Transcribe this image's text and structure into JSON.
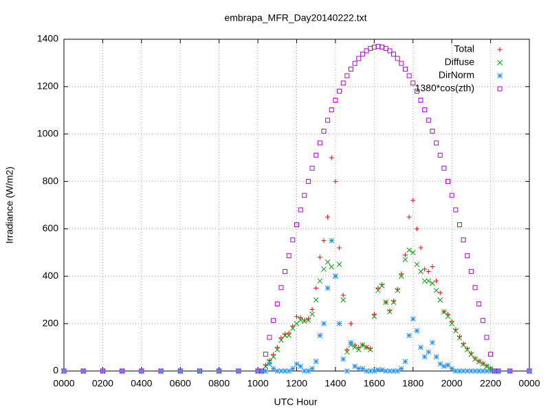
{
  "chart_data": {
    "type": "scatter",
    "title": "embrapa_MFR_Day20140222.txt",
    "xlabel": "UTC Hour",
    "ylabel": "Irradiance (W/m2)",
    "xlim": [
      0,
      24
    ],
    "xticks": [
      {
        "value": 0,
        "label": "0000"
      },
      {
        "value": 2,
        "label": "0200"
      },
      {
        "value": 4,
        "label": "0400"
      },
      {
        "value": 6,
        "label": "0600"
      },
      {
        "value": 8,
        "label": "0800"
      },
      {
        "value": 10,
        "label": "1000"
      },
      {
        "value": 12,
        "label": "1200"
      },
      {
        "value": 14,
        "label": "1400"
      },
      {
        "value": 16,
        "label": "1600"
      },
      {
        "value": 18,
        "label": "1800"
      },
      {
        "value": 20,
        "label": "2000"
      },
      {
        "value": 22,
        "label": "2200"
      },
      {
        "value": 24,
        "label": "0000"
      }
    ],
    "ylim": [
      0,
      1400
    ],
    "yticks": [
      0,
      200,
      400,
      600,
      800,
      1000,
      1200,
      1400
    ],
    "grid": true,
    "legend": "top-right",
    "x": [
      0,
      1,
      2,
      3,
      4,
      5,
      6,
      7,
      8,
      9,
      10,
      10.2,
      10.4,
      10.6,
      10.8,
      11,
      11.2,
      11.4,
      11.6,
      11.8,
      12,
      12.2,
      12.4,
      12.6,
      12.8,
      13,
      13.2,
      13.4,
      13.6,
      13.8,
      14,
      14.2,
      14.4,
      14.6,
      14.8,
      15,
      15.2,
      15.4,
      15.6,
      15.8,
      16,
      16.2,
      16.4,
      16.6,
      16.8,
      17,
      17.2,
      17.4,
      17.6,
      17.8,
      18,
      18.2,
      18.4,
      18.6,
      18.8,
      19,
      19.2,
      19.4,
      19.6,
      19.8,
      20,
      20.2,
      20.4,
      20.6,
      20.8,
      21,
      21.2,
      21.4,
      21.6,
      21.8,
      22,
      22.2,
      22.4,
      23,
      24
    ],
    "series": [
      {
        "name": "Total",
        "color": "#ff0000",
        "marker": "plus",
        "values": [
          0,
          0,
          0,
          0,
          0,
          0,
          0,
          0,
          0,
          0,
          0,
          0,
          25,
          45,
          70,
          100,
          140,
          155,
          160,
          190,
          230,
          225,
          215,
          220,
          260,
          350,
          480,
          550,
          650,
          900,
          800,
          520,
          320,
          90,
          200,
          110,
          100,
          110,
          100,
          95,
          240,
          350,
          365,
          290,
          255,
          295,
          345,
          410,
          490,
          650,
          720,
          600,
          520,
          430,
          420,
          440,
          380,
          330,
          250,
          240,
          210,
          175,
          145,
          115,
          95,
          75,
          55,
          42,
          32,
          22,
          12,
          0,
          0,
          0,
          0
        ]
      },
      {
        "name": "Diffuse",
        "color": "#00a000",
        "marker": "cross",
        "values": [
          0,
          0,
          0,
          0,
          0,
          0,
          0,
          0,
          0,
          0,
          0,
          0,
          20,
          40,
          60,
          90,
          130,
          150,
          150,
          180,
          200,
          215,
          210,
          215,
          240,
          300,
          380,
          430,
          460,
          440,
          400,
          450,
          300,
          80,
          110,
          100,
          90,
          110,
          100,
          90,
          230,
          340,
          360,
          290,
          250,
          290,
          340,
          400,
          470,
          510,
          500,
          450,
          420,
          380,
          380,
          370,
          340,
          300,
          250,
          230,
          200,
          170,
          140,
          110,
          90,
          70,
          50,
          40,
          30,
          20,
          10,
          0,
          0,
          0,
          0
        ]
      },
      {
        "name": "DirNorm",
        "color": "#1e90ff",
        "marker": "star",
        "values": [
          0,
          0,
          0,
          0,
          0,
          0,
          0,
          0,
          0,
          0,
          0,
          0,
          0,
          30,
          10,
          0,
          0,
          0,
          0,
          10,
          30,
          20,
          0,
          0,
          10,
          40,
          150,
          200,
          350,
          550,
          400,
          200,
          50,
          0,
          120,
          20,
          10,
          10,
          0,
          0,
          0,
          5,
          5,
          0,
          0,
          0,
          0,
          10,
          40,
          150,
          220,
          170,
          100,
          60,
          80,
          120,
          60,
          30,
          20,
          25,
          10,
          0,
          0,
          0,
          0,
          0,
          0,
          0,
          0,
          0,
          0,
          0,
          0,
          0,
          0
        ]
      },
      {
        "name": "1380*cos(zth)",
        "color": "#b000e0",
        "marker": "square",
        "values": [
          0,
          0,
          0,
          0,
          0,
          0,
          0,
          0,
          0,
          0,
          0,
          0,
          71,
          142,
          213,
          283,
          352,
          420,
          487,
          553,
          617,
          680,
          741,
          800,
          856,
          911,
          962,
          1012,
          1058,
          1102,
          1143,
          1181,
          1215,
          1246,
          1274,
          1298,
          1319,
          1337,
          1351,
          1361,
          1367,
          1370,
          1367,
          1361,
          1351,
          1337,
          1319,
          1298,
          1274,
          1246,
          1215,
          1181,
          1143,
          1102,
          1058,
          1012,
          962,
          911,
          856,
          800,
          741,
          680,
          617,
          553,
          487,
          420,
          352,
          283,
          213,
          142,
          71,
          0,
          0,
          0,
          0
        ]
      }
    ]
  }
}
